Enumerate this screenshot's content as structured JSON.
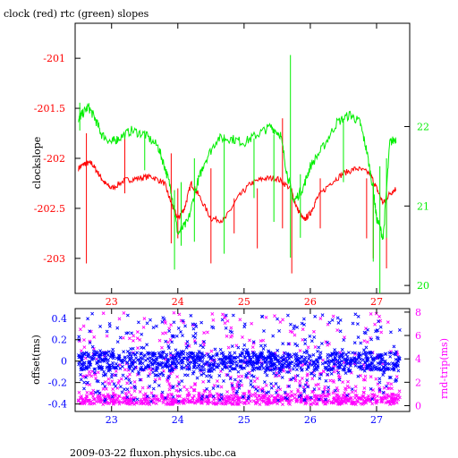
{
  "chart_data": [
    {
      "type": "line",
      "title": "clock (red) rtc (green) slopes",
      "ylabel": "clockslope",
      "x_ticks": [
        23,
        24,
        25,
        26,
        27
      ],
      "xlim": [
        22.45,
        27.5
      ],
      "left_axis": {
        "ticks": [
          -201,
          -201.5,
          -202,
          -202.5,
          -203
        ],
        "ylim": [
          -203.35,
          -200.65
        ],
        "color": "#ff0000"
      },
      "right_axis": {
        "ticks": [
          22,
          21,
          20
        ],
        "ylim": [
          19.9,
          23.3
        ],
        "color": "#00ee00"
      },
      "series": [
        {
          "axis": "left",
          "color": "#ff0000",
          "x": [
            22.5,
            22.6,
            22.7,
            22.8,
            22.9,
            23.0,
            23.2,
            23.4,
            23.6,
            23.8,
            23.9,
            24.0,
            24.1,
            24.2,
            24.3,
            24.5,
            24.7,
            24.9,
            25.1,
            25.3,
            25.5,
            25.7,
            25.8,
            25.9,
            26.0,
            26.1,
            26.3,
            26.5,
            26.7,
            26.9,
            27.0,
            27.1,
            27.2,
            27.3
          ],
          "values": [
            -202.1,
            -202.05,
            -202.05,
            -202.15,
            -202.25,
            -202.3,
            -202.22,
            -202.2,
            -202.18,
            -202.25,
            -202.45,
            -202.6,
            -202.5,
            -202.25,
            -202.35,
            -202.6,
            -202.62,
            -202.4,
            -202.25,
            -202.2,
            -202.2,
            -202.3,
            -202.5,
            -202.62,
            -202.55,
            -202.4,
            -202.25,
            -202.15,
            -202.1,
            -202.15,
            -202.3,
            -202.45,
            -202.35,
            -202.3
          ],
          "spikes": [
            {
              "x": 22.62,
              "low": -203.05,
              "high": -201.75
            },
            {
              "x": 23.2,
              "low": -202.35,
              "high": -201.8
            },
            {
              "x": 23.9,
              "low": -202.85,
              "high": -201.95
            },
            {
              "x": 24.0,
              "low": -202.8,
              "high": -202.3
            },
            {
              "x": 24.5,
              "low": -203.05,
              "high": -202.1
            },
            {
              "x": 24.85,
              "low": -202.75,
              "high": -202.4
            },
            {
              "x": 25.2,
              "low": -202.9,
              "high": -202.3
            },
            {
              "x": 25.58,
              "low": -202.7,
              "high": -201.6
            },
            {
              "x": 25.72,
              "low": -203.15,
              "high": -202.3
            },
            {
              "x": 26.15,
              "low": -202.7,
              "high": -202.2
            },
            {
              "x": 26.85,
              "low": -202.8,
              "high": -202.2
            },
            {
              "x": 26.95,
              "low": -203.0,
              "high": -202.25
            },
            {
              "x": 27.15,
              "low": -203.1,
              "high": -202.3
            }
          ]
        },
        {
          "axis": "right",
          "color": "#00ee00",
          "x": [
            22.5,
            22.55,
            22.65,
            22.75,
            22.85,
            23.0,
            23.1,
            23.3,
            23.5,
            23.7,
            23.8,
            23.9,
            24.0,
            24.15,
            24.3,
            24.4,
            24.6,
            24.8,
            25.0,
            25.2,
            25.4,
            25.55,
            25.65,
            25.75,
            25.9,
            26.0,
            26.2,
            26.4,
            26.6,
            26.75,
            26.85,
            26.95,
            27.0,
            27.1,
            27.2,
            27.3
          ],
          "values": [
            22.1,
            22.15,
            22.25,
            22.1,
            21.9,
            21.8,
            21.85,
            21.95,
            21.9,
            21.75,
            21.5,
            21.2,
            20.65,
            20.8,
            21.3,
            21.55,
            21.85,
            21.85,
            21.8,
            21.9,
            22.0,
            21.9,
            21.4,
            21.05,
            21.25,
            21.5,
            21.75,
            22.05,
            22.15,
            22.05,
            21.7,
            21.2,
            20.85,
            20.6,
            21.8,
            21.85
          ],
          "spikes": [
            {
              "x": 22.52,
              "low": 21.95,
              "high": 22.3
            },
            {
              "x": 23.5,
              "low": 21.45,
              "high": 21.95
            },
            {
              "x": 23.95,
              "low": 20.2,
              "high": 21.2
            },
            {
              "x": 24.05,
              "low": 20.5,
              "high": 21.3
            },
            {
              "x": 24.25,
              "low": 20.55,
              "high": 21.6
            },
            {
              "x": 24.7,
              "low": 20.4,
              "high": 21.9
            },
            {
              "x": 25.15,
              "low": 21.1,
              "high": 21.85
            },
            {
              "x": 25.45,
              "low": 20.8,
              "high": 21.9
            },
            {
              "x": 25.7,
              "low": 20.35,
              "high": 22.9
            },
            {
              "x": 25.85,
              "low": 20.6,
              "high": 21.4
            },
            {
              "x": 26.5,
              "low": 21.3,
              "high": 22.1
            },
            {
              "x": 26.95,
              "low": 20.3,
              "high": 21.3
            },
            {
              "x": 27.05,
              "low": 19.9,
              "high": 21.5
            },
            {
              "x": 27.15,
              "low": 20.6,
              "high": 21.6
            }
          ]
        }
      ]
    },
    {
      "type": "scatter",
      "x_ticks": [
        23,
        24,
        25,
        26,
        27
      ],
      "xlim": [
        22.45,
        27.5
      ],
      "left_axis": {
        "label": "offset(ms)",
        "ticks": [
          0.4,
          0.2,
          0,
          -0.2,
          -0.4
        ],
        "ylim": [
          -0.47,
          0.49
        ],
        "color": "#0000ff"
      },
      "right_axis": {
        "label": "rnd-trip(ms)",
        "ticks": [
          8,
          6,
          4,
          2,
          0
        ],
        "ylim": [
          -0.5,
          8.3
        ],
        "color": "#ff00ff"
      },
      "marker": "x",
      "series": [
        {
          "axis": "left",
          "color": "#0000ff",
          "x_range": [
            22.5,
            27.35
          ],
          "values_dense": [
            -0.08,
            0.08
          ],
          "values_sparse": [
            -0.3,
            0.45
          ]
        },
        {
          "axis": "right",
          "color": "#ff00ff",
          "x_range": [
            22.5,
            27.35
          ],
          "values_dense": [
            0.1,
            0.7
          ],
          "values_sparse": [
            0.8,
            8
          ]
        }
      ]
    }
  ],
  "footer": "2009-03-22 fluxon.physics.ubc.ca"
}
